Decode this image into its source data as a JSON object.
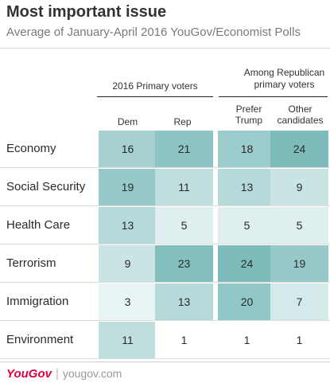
{
  "header": {
    "title": "Most important issue",
    "subtitle": "Average of January-April 2016 YouGov/Economist Polls"
  },
  "groups": [
    {
      "label": "2016 Primary voters"
    },
    {
      "label": "Among Republican primary voters"
    }
  ],
  "columns": [
    "Dem",
    "Rep",
    "Prefer Trump",
    "Other candidates"
  ],
  "footer": {
    "brand": "YouGov",
    "site": "yougov.com"
  },
  "colors": {
    "low": "#f3f9f9",
    "high": "#7ebcbc",
    "plain": "#ffffff"
  },
  "chart_data": {
    "type": "heatmap",
    "title": "Most important issue",
    "subtitle": "Average of January-April 2016 YouGov/Economist Polls",
    "columns": [
      "Dem",
      "Rep",
      "Prefer Trump",
      "Other candidates"
    ],
    "rows": [
      {
        "label": "Economy",
        "values": [
          16,
          21,
          18,
          24
        ]
      },
      {
        "label": "Social Security",
        "values": [
          19,
          11,
          13,
          9
        ]
      },
      {
        "label": "Health Care",
        "values": [
          13,
          5,
          5,
          5
        ]
      },
      {
        "label": "Terrorism",
        "values": [
          9,
          23,
          24,
          19
        ]
      },
      {
        "label": "Immigration",
        "values": [
          3,
          13,
          20,
          7
        ]
      },
      {
        "label": "Environment",
        "values": [
          11,
          1,
          1,
          1
        ]
      }
    ]
  }
}
